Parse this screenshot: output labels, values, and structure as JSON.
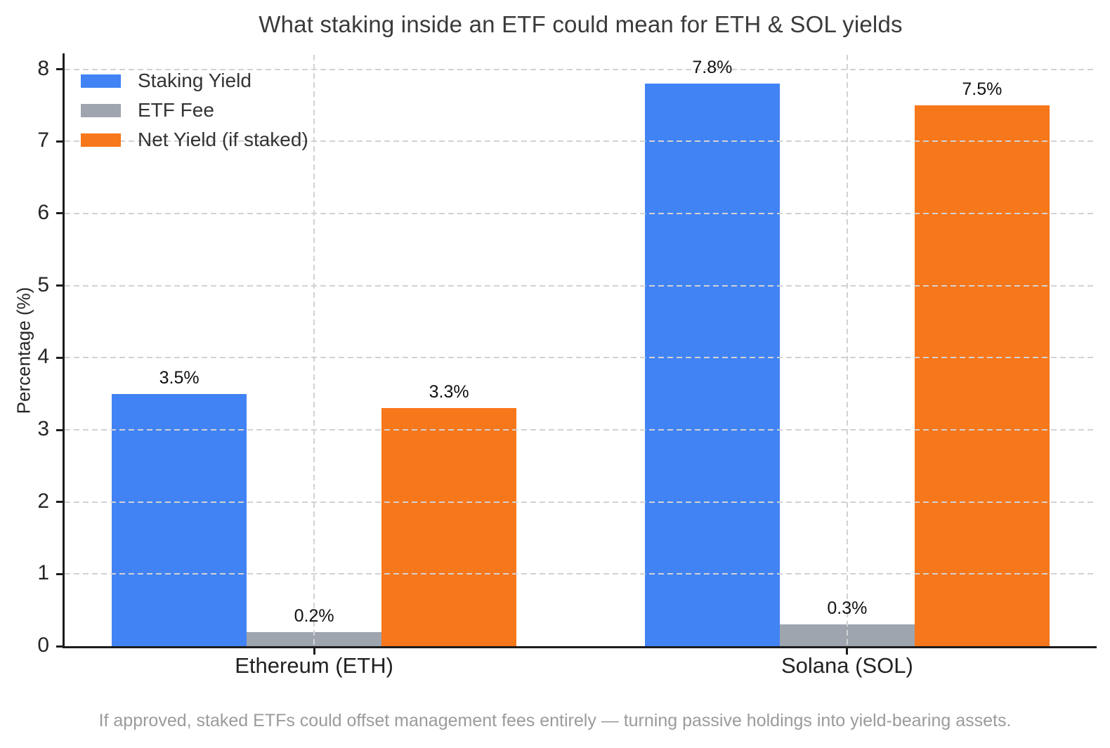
{
  "chart_data": {
    "type": "bar",
    "title": "What staking inside an ETF could mean for ETH & SOL yields",
    "xlabel": "",
    "ylabel": "Percentage (%)",
    "ylim": [
      0,
      8.2
    ],
    "yticks": [
      0,
      1,
      2,
      3,
      4,
      5,
      6,
      7,
      8
    ],
    "grid": "dashed light-gray gridlines on both axes, drawn above bars",
    "legend_position": "upper left, no frame",
    "categories": [
      "Ethereum (ETH)",
      "Solana (SOL)"
    ],
    "series": [
      {
        "name": "Staking Yield",
        "color": "#4183f4",
        "values": [
          3.5,
          7.8
        ],
        "labels": [
          "3.5%",
          "7.8%"
        ]
      },
      {
        "name": "ETF Fee",
        "color": "#9ea5af",
        "values": [
          0.2,
          0.3
        ],
        "labels": [
          "0.2%",
          "0.3%"
        ]
      },
      {
        "name": "Net Yield (if staked)",
        "color": "#f7771b",
        "values": [
          3.3,
          7.5
        ],
        "labels": [
          "3.3%",
          "7.5%"
        ]
      }
    ],
    "footnote": "If approved, staked ETFs could offset management fees entirely — turning passive holdings into yield-bearing assets."
  },
  "colors": {
    "spine": "#1c1c1c",
    "gridline": "#d2d2d2",
    "title_text": "#3a3a3a",
    "tick_text": "#262626",
    "bar_label_text": "#111111",
    "footnote_text": "#9b9b9b"
  }
}
